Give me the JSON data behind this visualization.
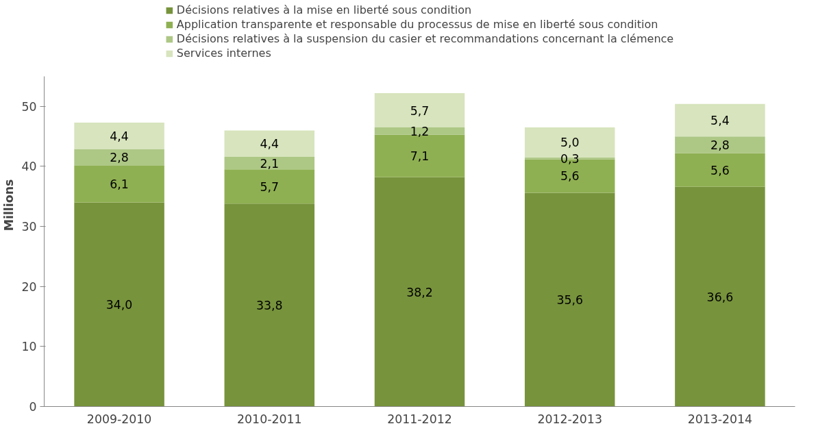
{
  "chart_data": {
    "type": "bar",
    "stacked": true,
    "ylabel": "Millions",
    "categories": [
      "2009-2010",
      "2010-2011",
      "2011-2012",
      "2012-2013",
      "2013-2014"
    ],
    "series": [
      {
        "name": "Décisions relatives à la mise en liberté sous condition",
        "color": "#77933c",
        "values": [
          34.0,
          33.8,
          38.2,
          35.6,
          36.6
        ],
        "value_labels": [
          "34,0",
          "33,8",
          "38,2",
          "35,6",
          "36,6"
        ]
      },
      {
        "name": "Application transparente et responsable du processus de mise en liberté sous condition",
        "color": "#8fb052",
        "values": [
          6.1,
          5.7,
          7.1,
          5.6,
          5.6
        ],
        "value_labels": [
          "6,1",
          "5,7",
          "7,1",
          "5,6",
          "5,6"
        ]
      },
      {
        "name": "Décisions relatives à la suspension du casier et recommandations concernant la clémence",
        "color": "#adc785",
        "values": [
          2.8,
          2.1,
          1.2,
          0.3,
          2.8
        ],
        "value_labels": [
          "2,8",
          "2,1",
          "1,2",
          "0,3",
          "2,8"
        ]
      },
      {
        "name": "Services internes",
        "color": "#d7e4bd",
        "values": [
          4.4,
          4.4,
          5.7,
          5.0,
          5.4
        ],
        "value_labels": [
          "4,4",
          "4,4",
          "5,7",
          "5,0",
          "5,4"
        ]
      }
    ],
    "ylim": [
      0,
      55
    ],
    "yticks": [
      0,
      10,
      20,
      30,
      40,
      50
    ],
    "grid": false,
    "legend": "top"
  }
}
